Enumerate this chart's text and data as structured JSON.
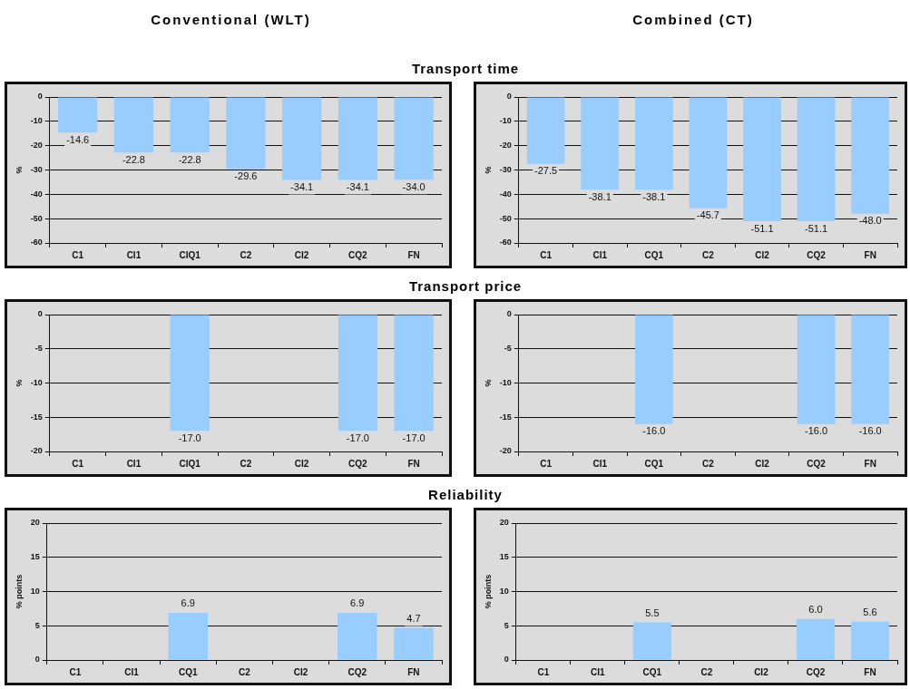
{
  "chart_data": [
    {
      "type": "bar",
      "subtitle": "Conventional (WLT)",
      "title": "Transport time",
      "ylabel": "%",
      "categories": [
        "C1",
        "CI1",
        "CIQ1",
        "C2",
        "CI2",
        "CQ2",
        "FN"
      ],
      "values": [
        -14.6,
        -22.8,
        -22.8,
        -29.6,
        -34.1,
        -34.1,
        -34.0
      ],
      "value_labels": [
        "-14.6",
        "-22.8",
        "-22.8",
        "-29.6",
        "-34.1",
        "-34.1",
        "-34.0"
      ],
      "color": "#99ccff",
      "ylim": [
        -60,
        0
      ],
      "yticks": [
        0,
        -10,
        -20,
        -30,
        -40,
        -50,
        -60
      ],
      "grid": "y",
      "legend": false
    },
    {
      "type": "bar",
      "subtitle": "Combined (CT)",
      "ylabel": "%",
      "categories": [
        "C1",
        "CI1",
        "CQ1",
        "C2",
        "CI2",
        "CQ2",
        "FN"
      ],
      "values": [
        -27.5,
        -38.1,
        -38.1,
        -45.7,
        -51.1,
        -51.1,
        -48.0
      ],
      "value_labels": [
        "-27.5",
        "-38.1",
        "-38.1",
        "-45.7",
        "-51.1",
        "-51.1",
        "-48.0"
      ],
      "color": "#99ccff",
      "ylim": [
        -60,
        0
      ],
      "yticks": [
        0,
        -10,
        -20,
        -30,
        -40,
        -50,
        -60
      ],
      "grid": "y",
      "legend": false
    },
    {
      "type": "bar",
      "title": "Transport price",
      "ylabel": "%",
      "categories": [
        "C1",
        "CI1",
        "CIQ1",
        "C2",
        "CI2",
        "CQ2",
        "FN"
      ],
      "values": [
        null,
        null,
        -17.0,
        null,
        null,
        -17.0,
        -17.0
      ],
      "value_labels": [
        null,
        null,
        "-17.0",
        null,
        null,
        "-17.0",
        "-17.0"
      ],
      "color": "#99ccff",
      "ylim": [
        -20,
        0
      ],
      "yticks": [
        0,
        -5,
        -10,
        -15,
        -20
      ],
      "grid": "y",
      "legend": false
    },
    {
      "type": "bar",
      "ylabel": "%",
      "categories": [
        "C1",
        "CI1",
        "CQ1",
        "C2",
        "CI2",
        "CQ2",
        "FN"
      ],
      "values": [
        null,
        null,
        -16.0,
        null,
        null,
        -16.0,
        -16.0
      ],
      "value_labels": [
        null,
        null,
        "-16.0",
        null,
        null,
        "-16.0",
        "-16.0"
      ],
      "color": "#99ccff",
      "ylim": [
        -20,
        0
      ],
      "yticks": [
        0,
        -5,
        -10,
        -15,
        -20
      ],
      "grid": "y",
      "legend": false
    },
    {
      "type": "bar",
      "title": "Reliability",
      "ylabel": "% points",
      "categories": [
        "C1",
        "CI1",
        "CQ1",
        "C2",
        "CI2",
        "CQ2",
        "FN"
      ],
      "values": [
        null,
        null,
        6.9,
        null,
        null,
        6.9,
        4.7
      ],
      "value_labels": [
        null,
        null,
        "6.9",
        null,
        null,
        "6.9",
        "4.7"
      ],
      "color": "#99ccff",
      "ylim": [
        0,
        20
      ],
      "yticks": [
        0,
        5,
        10,
        15,
        20
      ],
      "grid": "y",
      "legend": false
    },
    {
      "type": "bar",
      "ylabel": "% points",
      "categories": [
        "C1",
        "CI1",
        "CQ1",
        "C2",
        "CI2",
        "CQ2",
        "FN"
      ],
      "values": [
        null,
        null,
        5.5,
        null,
        null,
        6.0,
        5.6
      ],
      "value_labels": [
        null,
        null,
        "5.5",
        null,
        null,
        "6.0",
        "5.6"
      ],
      "color": "#99ccff",
      "ylim": [
        0,
        20
      ],
      "yticks": [
        0,
        5,
        10,
        15,
        20
      ],
      "grid": "y",
      "legend": false
    }
  ]
}
